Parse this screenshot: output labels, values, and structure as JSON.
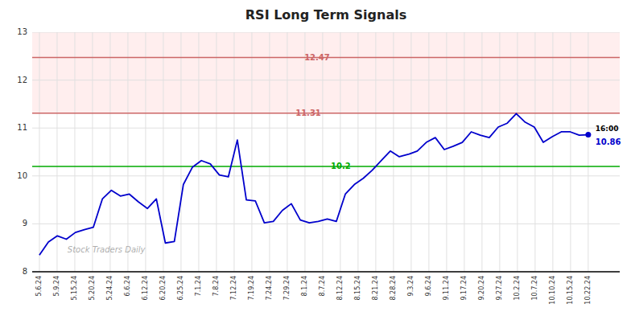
{
  "chart_data": {
    "type": "line",
    "title": "RSI Long Term Signals",
    "color": "#0000cc",
    "grid": true,
    "marker": "last",
    "x": [
      0,
      1,
      2,
      3,
      4,
      5,
      6,
      7,
      8,
      9,
      10,
      11,
      12,
      13,
      14,
      15,
      16,
      17,
      18,
      19,
      20,
      21,
      22,
      23,
      24,
      25,
      26,
      27,
      28,
      29,
      30,
      31,
      32,
      33,
      34,
      35,
      36,
      37,
      38,
      39,
      40,
      41,
      42,
      43,
      44,
      45,
      46,
      47,
      48,
      49,
      50,
      51,
      52,
      53,
      54,
      55,
      56,
      57,
      58,
      59,
      60,
      61
    ],
    "values": [
      8.35,
      8.62,
      8.75,
      8.68,
      8.82,
      8.88,
      8.93,
      9.52,
      9.7,
      9.58,
      9.62,
      9.46,
      9.32,
      9.52,
      8.6,
      8.63,
      9.82,
      10.18,
      10.32,
      10.25,
      10.02,
      9.98,
      10.75,
      9.5,
      9.48,
      9.02,
      9.05,
      9.28,
      9.42,
      9.08,
      9.02,
      9.05,
      9.1,
      9.05,
      9.62,
      9.82,
      9.95,
      10.12,
      10.32,
      10.52,
      10.4,
      10.45,
      10.52,
      10.7,
      10.8,
      10.55,
      10.62,
      10.7,
      10.92,
      10.85,
      10.8,
      11.02,
      11.1,
      11.3,
      11.12,
      11.02,
      10.7,
      10.82,
      10.92,
      10.92,
      10.85,
      10.86
    ],
    "xlim": [
      -0.8,
      64.5
    ],
    "xticks": [
      {
        "value": 0,
        "label": "5.6.24"
      },
      {
        "value": 1.967741935483871,
        "label": "5.9.24"
      },
      {
        "value": 3.935483870967742,
        "label": "5.15.24"
      },
      {
        "value": 5.903225806451613,
        "label": "5.20.24"
      },
      {
        "value": 7.870967741935484,
        "label": "5.24.24"
      },
      {
        "value": 9.838709677419356,
        "label": "6.6.24"
      },
      {
        "value": 11.806451612903226,
        "label": "6.12.24"
      },
      {
        "value": 13.774193548387096,
        "label": "6.20.24"
      },
      {
        "value": 15.741935483870968,
        "label": "6.25.24"
      },
      {
        "value": 17.70967741935484,
        "label": "7.1.24"
      },
      {
        "value": 19.677419354838708,
        "label": "7.8.24"
      },
      {
        "value": 21.64516129032258,
        "label": "7.12.24"
      },
      {
        "value": 23.612903225806452,
        "label": "7.19.24"
      },
      {
        "value": 25.580645161290324,
        "label": "7.24.24"
      },
      {
        "value": 27.548387096774192,
        "label": "7.29.24"
      },
      {
        "value": 29.516129032258064,
        "label": "8.1.24"
      },
      {
        "value": 31.483870967741936,
        "label": "8.7.24"
      },
      {
        "value": 33.45161290322581,
        "label": "8.12.24"
      },
      {
        "value": 35.41935483870968,
        "label": "8.15.24"
      },
      {
        "value": 37.38709677419355,
        "label": "8.21.24"
      },
      {
        "value": 39.354838709677416,
        "label": "8.28.24"
      },
      {
        "value": 41.32258064516129,
        "label": "9.3.24"
      },
      {
        "value": 43.29032258064516,
        "label": "9.6.24"
      },
      {
        "value": 45.25806451612903,
        "label": "9.11.24"
      },
      {
        "value": 47.225806451612904,
        "label": "9.17.24"
      },
      {
        "value": 49.193548387096776,
        "label": "9.20.24"
      },
      {
        "value": 51.16129032258065,
        "label": "9.27.24"
      },
      {
        "value": 53.12903225806452,
        "label": "10.2.24"
      },
      {
        "value": 55.096774193548384,
        "label": "10.7.24"
      },
      {
        "value": 57.064516129032256,
        "label": "10.10.24"
      },
      {
        "value": 59.03225806451613,
        "label": "10.15.24"
      },
      {
        "value": 61,
        "label": "10.22.24"
      }
    ],
    "ylim": [
      8,
      13
    ],
    "yticks": [
      8,
      9,
      10,
      11,
      12,
      13
    ],
    "shaded_range": {
      "from": 11.31,
      "to": 13.5,
      "color": "#ffeeee"
    },
    "reference_lines": [
      {
        "value": 12.47,
        "label": "12.47",
        "color": "#cc6666"
      },
      {
        "value": 11.31,
        "label": "11.31",
        "color": "#cc6666"
      },
      {
        "value": 10.2,
        "label": "10.2",
        "color": "#00aa00"
      }
    ],
    "annotations": [
      {
        "text": "16:00",
        "x": 61,
        "y": 10.86
      },
      {
        "text": "10.86",
        "x": 61,
        "y": 10.86
      }
    ],
    "watermark": "Stock Traders Daily"
  }
}
